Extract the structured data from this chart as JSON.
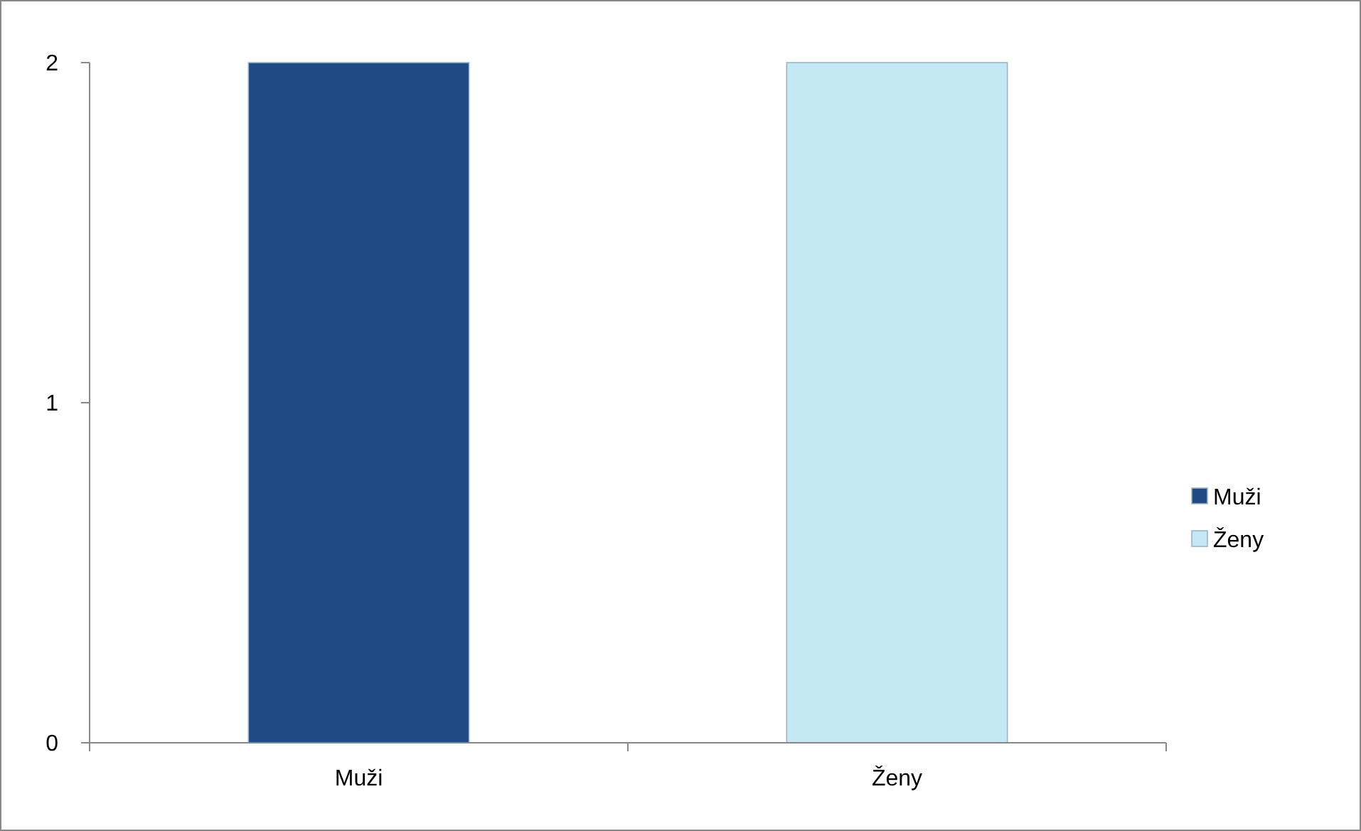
{
  "chart_data": {
    "type": "bar",
    "categories": [
      "Muži",
      "Ženy"
    ],
    "series": [
      {
        "name": "Muži",
        "color": "#1f4b82",
        "values": [
          2,
          null
        ]
      },
      {
        "name": "Ženy",
        "color": "#c4e9f4",
        "values": [
          null,
          2
        ]
      }
    ],
    "ylim": [
      0,
      2
    ],
    "yticks": [
      0,
      1,
      2
    ],
    "grid": false,
    "legend": "right"
  }
}
